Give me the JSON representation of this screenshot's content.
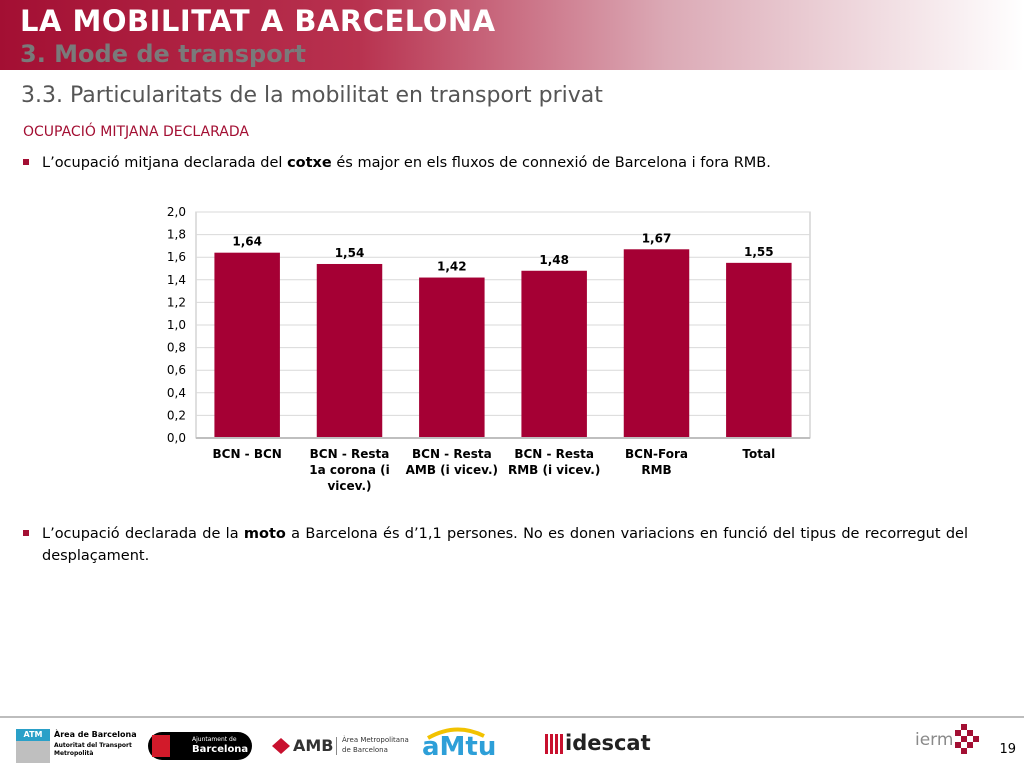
{
  "header": {
    "title": "LA MOBILITAT A BARCELONA",
    "subtitle": "3. Mode de transport"
  },
  "section_heading": "3.3. Particularitats de la mobilitat en transport privat",
  "block_label": "OCUPACIÓ MITJANA DECLARADA",
  "bullets": [
    {
      "pre": "L’ocupació mitjana declarada del ",
      "bold": "cotxe",
      "post": " és major en els fluxos de connexió de Barcelona i fora RMB."
    },
    {
      "pre": "L’ocupació declarada de la ",
      "bold": "moto",
      "post": " a Barcelona és d’1,1 persones. No es donen variacions en funció del tipus de recorregut del desplaçament."
    }
  ],
  "chart_data": {
    "type": "bar",
    "categories": [
      [
        "BCN - BCN"
      ],
      [
        "BCN - Resta",
        "1a corona (i",
        "vicev.)"
      ],
      [
        "BCN - Resta",
        "AMB (i vicev.)"
      ],
      [
        "BCN - Resta",
        "RMB (i vicev.)"
      ],
      [
        "BCN-Fora",
        "RMB"
      ],
      [
        "Total"
      ]
    ],
    "values": [
      1.64,
      1.54,
      1.42,
      1.48,
      1.67,
      1.55
    ],
    "value_labels": [
      "1,64",
      "1,54",
      "1,42",
      "1,48",
      "1,67",
      "1,55"
    ],
    "yticks": [
      "0,0",
      "0,2",
      "0,4",
      "0,6",
      "0,8",
      "1,0",
      "1,2",
      "1,4",
      "1,6",
      "1,8",
      "2,0"
    ],
    "ylim": [
      0,
      2
    ],
    "grid": true,
    "bar_color": "#a50034",
    "title": "",
    "xlabel": "",
    "ylabel": ""
  },
  "footer": {
    "logos": [
      {
        "name": "atm-logo",
        "lines": [
          "ATM",
          "Àrea de Barcelona",
          "Autoritat del Transport",
          "Metropolità"
        ]
      },
      {
        "name": "ajuntament-logo",
        "lines": [
          "Ajuntament de",
          "Barcelona"
        ]
      },
      {
        "name": "amb-logo",
        "lines": [
          "AMB",
          "Àrea Metropolitana",
          "de Barcelona"
        ]
      },
      {
        "name": "amtu-logo",
        "lines": [
          "aMtu"
        ]
      },
      {
        "name": "idescat-logo",
        "lines": [
          "idescat"
        ]
      },
      {
        "name": "iermb-logo",
        "lines": [
          "ierm"
        ]
      }
    ],
    "page_number": "19"
  },
  "colors": {
    "accent": "#a30f33",
    "bar": "#a50034"
  }
}
